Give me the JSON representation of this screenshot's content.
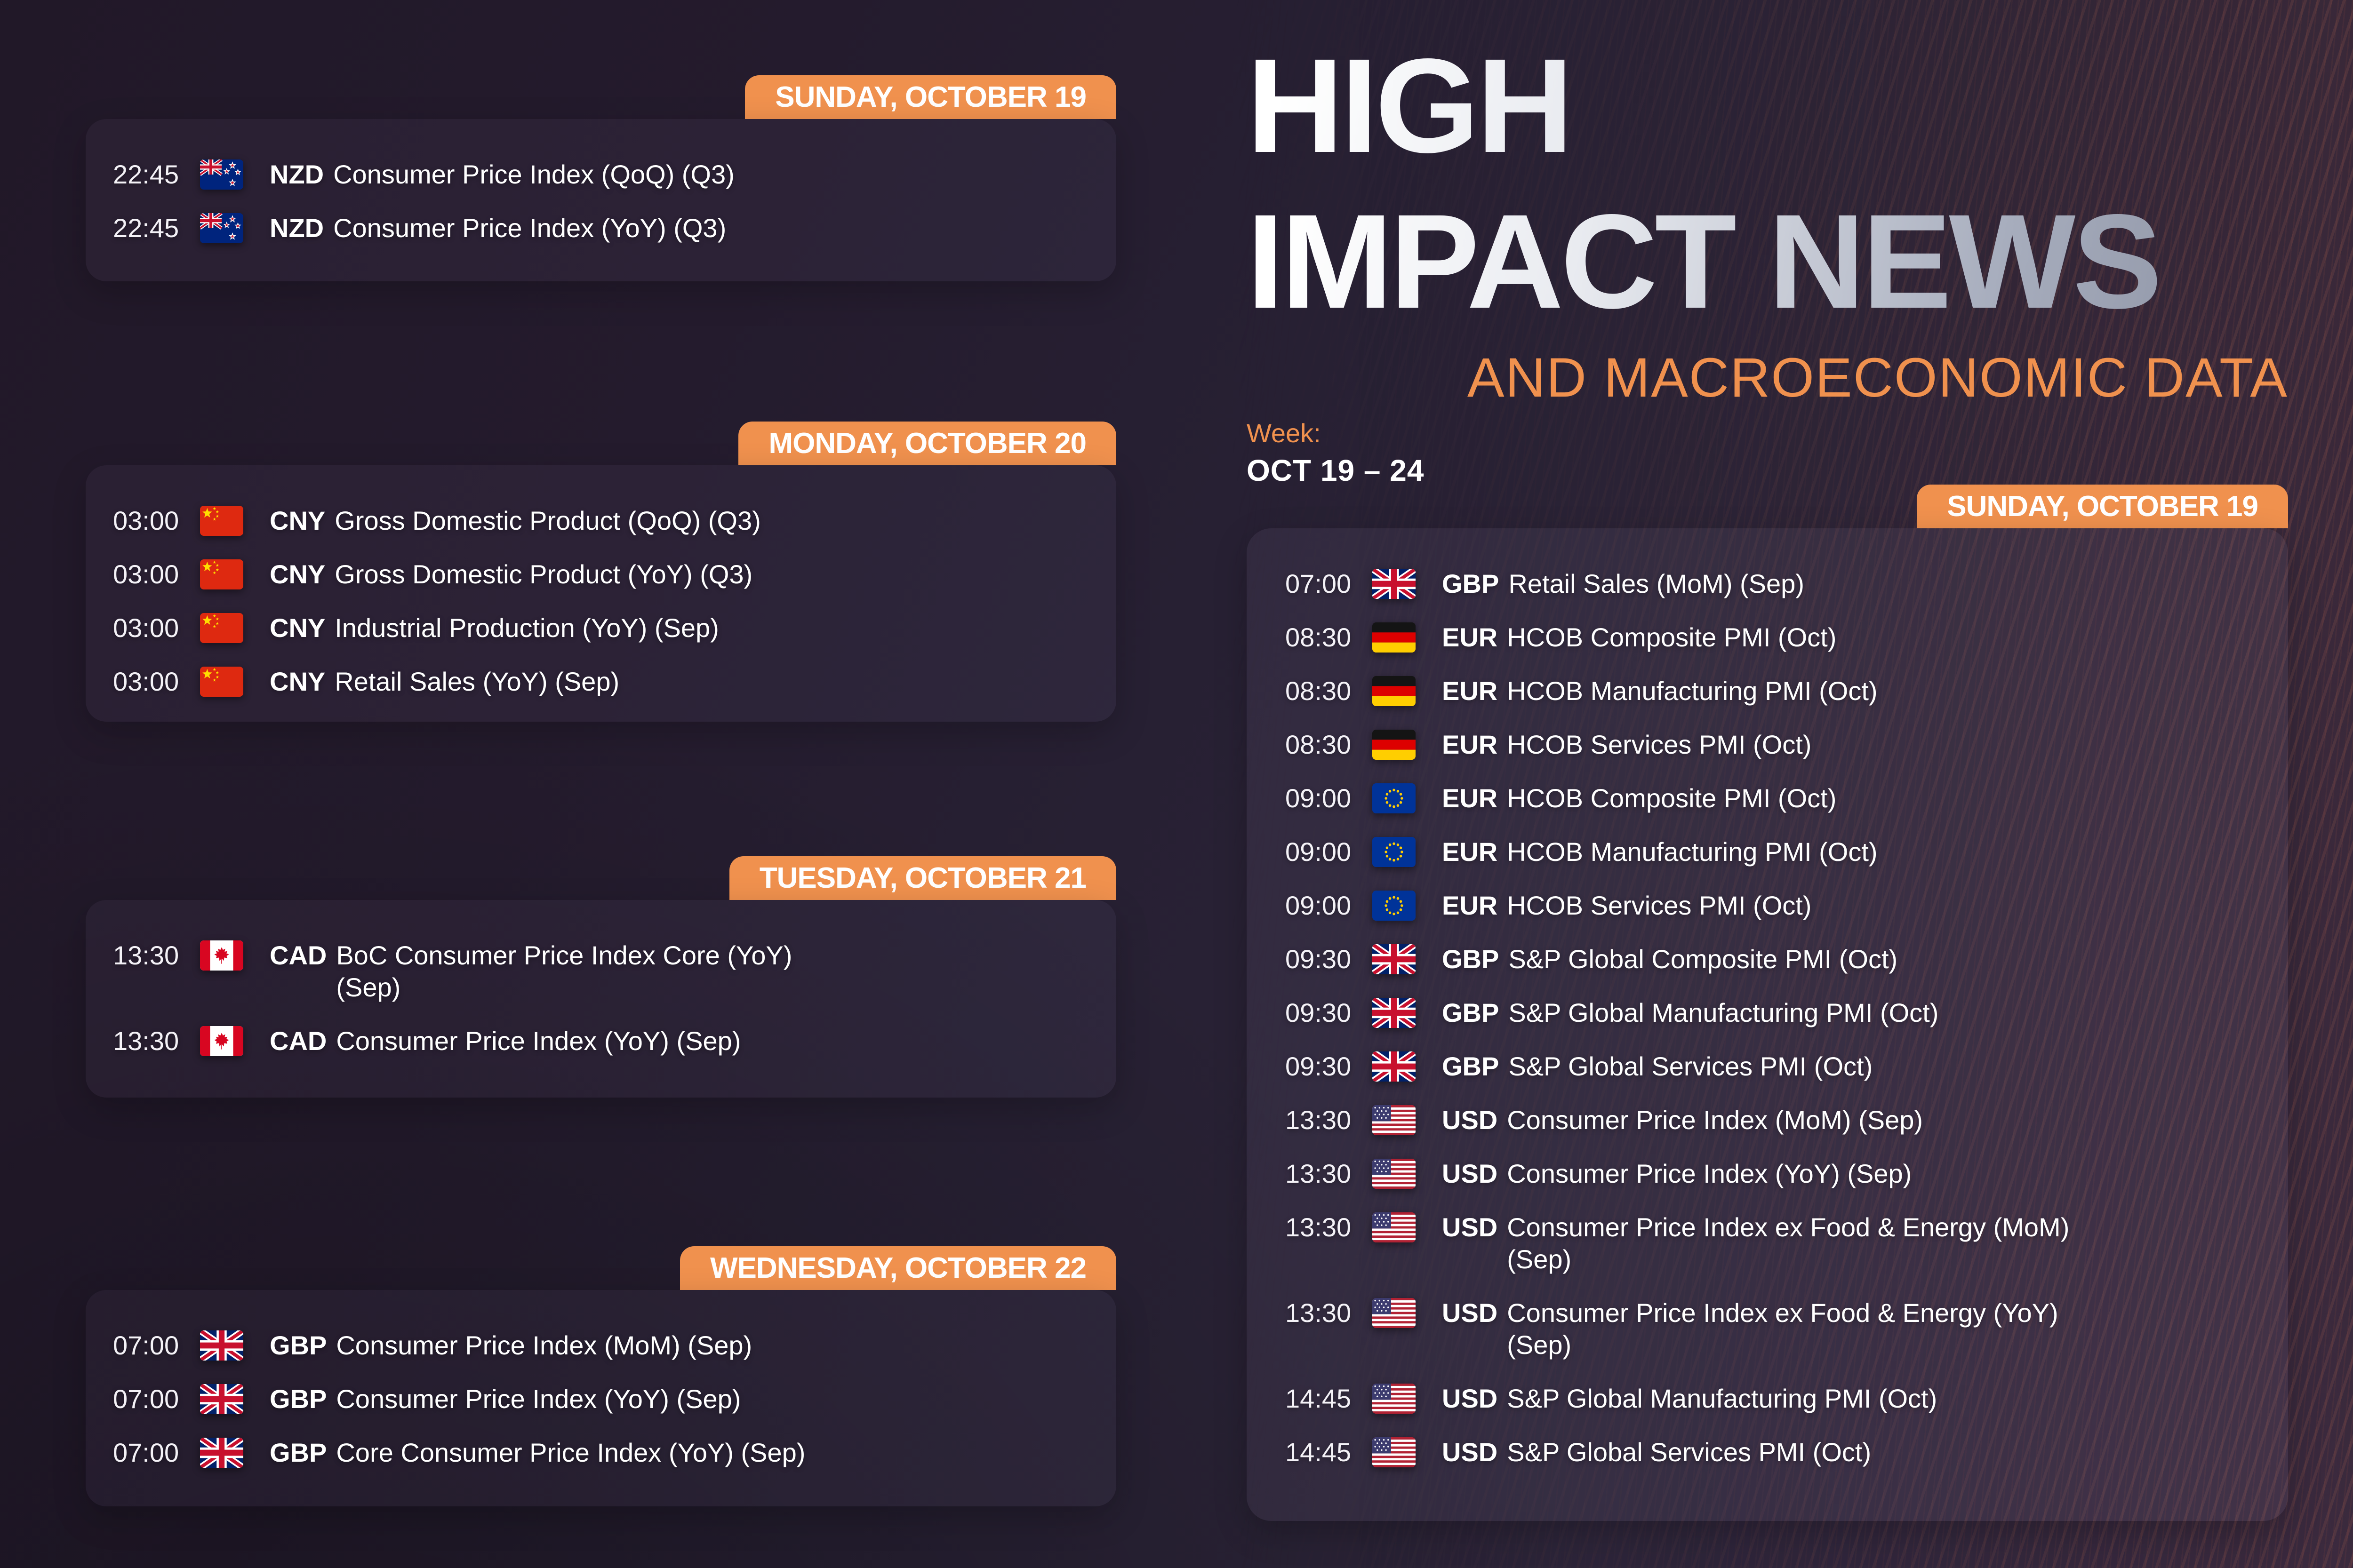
{
  "title": {
    "line1": "HIGH",
    "line2": "IMPACT NEWS",
    "subtitle": "AND MACROECONOMIC DATA"
  },
  "week": {
    "label": "Week:",
    "range": "OCT 19 – 24"
  },
  "colors": {
    "accent_orange": "#F0914E",
    "title_gradient_start": "#FFFFFF",
    "title_gradient_end": "#8E94A5",
    "background": "#241B2F",
    "card_tint": "#2C2539",
    "text": "#FFFFFF",
    "texture_brown": "#6E4B49"
  },
  "sections": [
    {
      "header": "SUNDAY, OCTOBER 19",
      "events": [
        {
          "time": "22:45",
          "flag": "new-zealand-flag",
          "currency": "NZD",
          "name": "Consumer Price Index (QoQ) (Q3)"
        },
        {
          "time": "22:45",
          "flag": "new-zealand-flag",
          "currency": "NZD",
          "name": "Consumer Price Index (YoY) (Q3)"
        }
      ]
    },
    {
      "header": "MONDAY, OCTOBER 20",
      "events": [
        {
          "time": "03:00",
          "flag": "china-flag",
          "currency": "CNY",
          "name": "Gross Domestic Product (QoQ) (Q3)"
        },
        {
          "time": "03:00",
          "flag": "china-flag",
          "currency": "CNY",
          "name": "Gross Domestic Product (YoY) (Q3)"
        },
        {
          "time": "03:00",
          "flag": "china-flag",
          "currency": "CNY",
          "name": "Industrial Production (YoY) (Sep)"
        },
        {
          "time": "03:00",
          "flag": "china-flag",
          "currency": "CNY",
          "name": "Retail Sales (YoY) (Sep)"
        }
      ]
    },
    {
      "header": "TUESDAY, OCTOBER 21",
      "events": [
        {
          "time": "13:30",
          "flag": "canada-flag",
          "currency": "CAD",
          "name": "BoC Consumer Price Index Core (YoY) (Sep)"
        },
        {
          "time": "13:30",
          "flag": "canada-flag",
          "currency": "CAD",
          "name": "Consumer Price Index (YoY) (Sep)"
        }
      ]
    },
    {
      "header": "WEDNESDAY, OCTOBER 22",
      "events": [
        {
          "time": "07:00",
          "flag": "uk-flag",
          "currency": "GBP",
          "name": "Consumer Price Index (MoM) (Sep)"
        },
        {
          "time": "07:00",
          "flag": "uk-flag",
          "currency": "GBP",
          "name": "Consumer Price Index (YoY) (Sep)"
        },
        {
          "time": "07:00",
          "flag": "uk-flag",
          "currency": "GBP",
          "name": "Core Consumer Price Index (YoY) (Sep)"
        }
      ]
    },
    {
      "header": "SUNDAY, OCTOBER 19",
      "events": [
        {
          "time": "07:00",
          "flag": "uk-flag",
          "currency": "GBP",
          "name": "Retail Sales (MoM) (Sep)"
        },
        {
          "time": "08:30",
          "flag": "germany-flag",
          "currency": "EUR",
          "name": "HCOB Composite PMI (Oct)"
        },
        {
          "time": "08:30",
          "flag": "germany-flag",
          "currency": "EUR",
          "name": "HCOB Manufacturing PMI (Oct)"
        },
        {
          "time": "08:30",
          "flag": "germany-flag",
          "currency": "EUR",
          "name": "HCOB Services PMI (Oct)"
        },
        {
          "time": "09:00",
          "flag": "eu-flag",
          "currency": "EUR",
          "name": "HCOB Composite PMI (Oct)"
        },
        {
          "time": "09:00",
          "flag": "eu-flag",
          "currency": "EUR",
          "name": "HCOB Manufacturing PMI (Oct)"
        },
        {
          "time": "09:00",
          "flag": "eu-flag",
          "currency": "EUR",
          "name": "HCOB Services PMI (Oct)"
        },
        {
          "time": "09:30",
          "flag": "uk-flag",
          "currency": "GBP",
          "name": "S&P Global Composite PMI (Oct)"
        },
        {
          "time": "09:30",
          "flag": "uk-flag",
          "currency": "GBP",
          "name": "S&P Global Manufacturing PMI (Oct)"
        },
        {
          "time": "09:30",
          "flag": "uk-flag",
          "currency": "GBP",
          "name": "S&P Global Services PMI (Oct)"
        },
        {
          "time": "13:30",
          "flag": "us-flag",
          "currency": "USD",
          "name": "Consumer Price Index (MoM) (Sep)"
        },
        {
          "time": "13:30",
          "flag": "us-flag",
          "currency": "USD",
          "name": "Consumer Price Index (YoY) (Sep)"
        },
        {
          "time": "13:30",
          "flag": "us-flag",
          "currency": "USD",
          "name": "Consumer Price Index ex Food & Energy (MoM) (Sep)"
        },
        {
          "time": "13:30",
          "flag": "us-flag",
          "currency": "USD",
          "name": "Consumer Price Index ex Food & Energy (YoY) (Sep)"
        },
        {
          "time": "14:45",
          "flag": "us-flag",
          "currency": "USD",
          "name": "S&P Global Manufacturing PMI (Oct)"
        },
        {
          "time": "14:45",
          "flag": "us-flag",
          "currency": "USD",
          "name": "S&P Global Services PMI (Oct)"
        }
      ]
    }
  ]
}
